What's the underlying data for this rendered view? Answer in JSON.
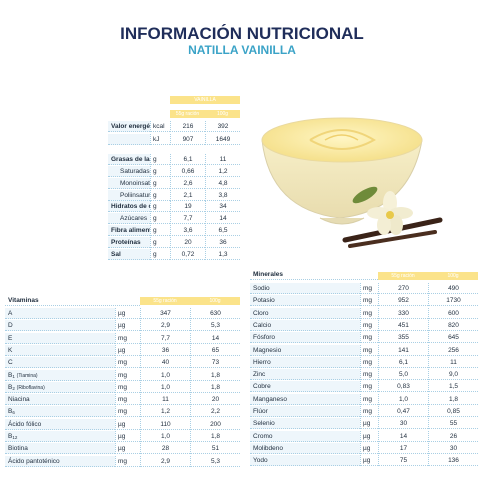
{
  "header": {
    "title": "INFORMACIÓN NUTRICIONAL",
    "subtitle": "NATILLA VAINILLA"
  },
  "nutrition": {
    "group": "VAINILLA",
    "columns": [
      "55g ración",
      "100g"
    ],
    "rows": [
      {
        "name": "Valor energético",
        "unit": "kcal",
        "v1": "216",
        "v2": "392"
      },
      {
        "unit": "kJ",
        "v1": "907",
        "v2": "1649"
      },
      {
        "name": "Grasas de las cuales:",
        "unit": "g",
        "v1": "6,1",
        "v2": "11"
      },
      {
        "name": "Saturadas",
        "unit": "g",
        "v1": "0,66",
        "v2": "1,2"
      },
      {
        "name": "Monoinsaturadas",
        "unit": "g",
        "v1": "2,6",
        "v2": "4,8"
      },
      {
        "name": "Poliinsaturadas",
        "unit": "g",
        "v1": "2,1",
        "v2": "3,8"
      },
      {
        "name": "Hidratos de carbono de los cuales:",
        "unit": "g",
        "v1": "19",
        "v2": "34"
      },
      {
        "name": "Azúcares",
        "unit": "g",
        "v1": "7,7",
        "v2": "14"
      },
      {
        "name": "Fibra alimentaria",
        "unit": "g",
        "v1": "3,6",
        "v2": "6,5"
      },
      {
        "name": "Proteínas",
        "unit": "g",
        "v1": "20",
        "v2": "36"
      },
      {
        "name": "Sal",
        "unit": "g",
        "v1": "0,72",
        "v2": "1,3"
      }
    ]
  },
  "vitamins": {
    "title": "Vitaminas",
    "columns": [
      "55g ración",
      "100g"
    ],
    "rows": [
      {
        "name": "A",
        "unit": "µg",
        "v1": "347",
        "v2": "630"
      },
      {
        "name": "D",
        "unit": "µg",
        "v1": "2,9",
        "v2": "5,3"
      },
      {
        "name": "E",
        "unit": "mg",
        "v1": "7,7",
        "v2": "14"
      },
      {
        "name": "K",
        "unit": "µg",
        "v1": "36",
        "v2": "65"
      },
      {
        "name": "C",
        "unit": "mg",
        "v1": "40",
        "v2": "73"
      },
      {
        "name": "B",
        "sub": "1",
        "note": "(Tiamina)",
        "unit": "mg",
        "v1": "1,0",
        "v2": "1,8"
      },
      {
        "name": "B",
        "sub": "2",
        "note": "(Riboflavina)",
        "unit": "mg",
        "v1": "1,0",
        "v2": "1,8"
      },
      {
        "name": "Niacina",
        "unit": "mg",
        "v1": "11",
        "v2": "20"
      },
      {
        "name": "B",
        "sub": "6",
        "unit": "mg",
        "v1": "1,2",
        "v2": "2,2"
      },
      {
        "name": "Ácido fólico",
        "unit": "µg",
        "v1": "110",
        "v2": "200"
      },
      {
        "name": "B",
        "sub": "12",
        "unit": "µg",
        "v1": "1,0",
        "v2": "1,8"
      },
      {
        "name": "Biotina",
        "unit": "µg",
        "v1": "28",
        "v2": "51"
      },
      {
        "name": "Ácido pantoténico",
        "unit": "mg",
        "v1": "2,9",
        "v2": "5,3"
      }
    ]
  },
  "minerals": {
    "title": "Minerales",
    "columns": [
      "55g ración",
      "100g"
    ],
    "rows": [
      {
        "name": "Sodio",
        "unit": "mg",
        "v1": "270",
        "v2": "490"
      },
      {
        "name": "Potasio",
        "unit": "mg",
        "v1": "952",
        "v2": "1730"
      },
      {
        "name": "Cloro",
        "unit": "mg",
        "v1": "330",
        "v2": "600"
      },
      {
        "name": "Calcio",
        "unit": "mg",
        "v1": "451",
        "v2": "820"
      },
      {
        "name": "Fósforo",
        "unit": "mg",
        "v1": "355",
        "v2": "645"
      },
      {
        "name": "Magnesio",
        "unit": "mg",
        "v1": "141",
        "v2": "256"
      },
      {
        "name": "Hierro",
        "unit": "mg",
        "v1": "6,1",
        "v2": "11"
      },
      {
        "name": "Zinc",
        "unit": "mg",
        "v1": "5,0",
        "v2": "9,0"
      },
      {
        "name": "Cobre",
        "unit": "mg",
        "v1": "0,83",
        "v2": "1,5"
      },
      {
        "name": "Manganeso",
        "unit": "mg",
        "v1": "1,0",
        "v2": "1,8"
      },
      {
        "name": "Flúor",
        "unit": "mg",
        "v1": "0,47",
        "v2": "0,85"
      },
      {
        "name": "Selenio",
        "unit": "µg",
        "v1": "30",
        "v2": "55"
      },
      {
        "name": "Cromo",
        "unit": "µg",
        "v1": "14",
        "v2": "26"
      },
      {
        "name": "Molibdeno",
        "unit": "µg",
        "v1": "17",
        "v2": "30"
      },
      {
        "name": "Yodo",
        "unit": "µg",
        "v1": "75",
        "v2": "136"
      }
    ]
  }
}
